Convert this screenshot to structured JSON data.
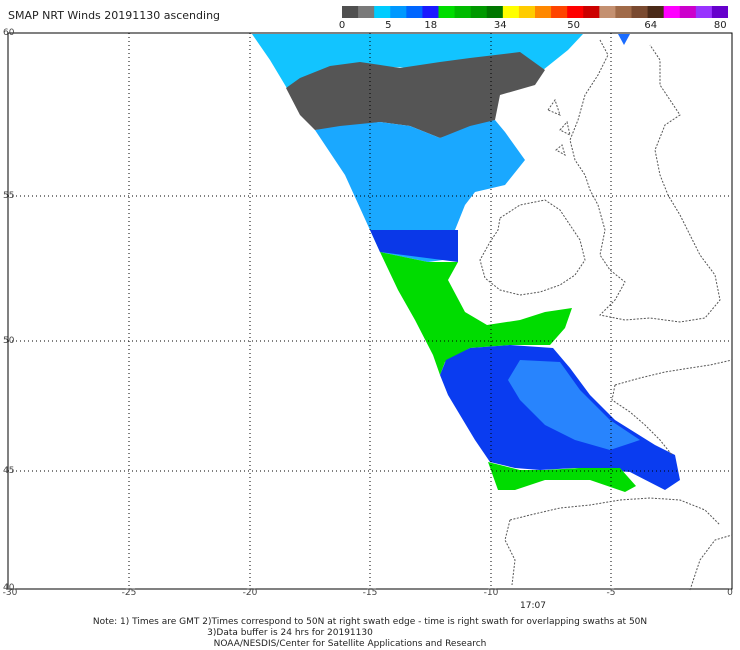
{
  "title": "SMAP NRT Winds 20191130 ascending",
  "colorbar": {
    "segments": [
      {
        "color": "#505050"
      },
      {
        "color": "#7a7a7a"
      },
      {
        "color": "#00ccff"
      },
      {
        "color": "#0099ff"
      },
      {
        "color": "#0066ff"
      },
      {
        "color": "#1a1aff"
      },
      {
        "color": "#00dd00"
      },
      {
        "color": "#00bb00"
      },
      {
        "color": "#009900"
      },
      {
        "color": "#007700"
      },
      {
        "color": "#ffff00"
      },
      {
        "color": "#ffcc00"
      },
      {
        "color": "#ff8800"
      },
      {
        "color": "#ff4400"
      },
      {
        "color": "#ff0000"
      },
      {
        "color": "#cc0000"
      },
      {
        "color": "#c49070"
      },
      {
        "color": "#a06a48"
      },
      {
        "color": "#7a4a30"
      },
      {
        "color": "#4a2a18"
      },
      {
        "color": "#ff00ff"
      },
      {
        "color": "#cc00cc"
      },
      {
        "color": "#9933ff"
      },
      {
        "color": "#6600cc"
      }
    ],
    "ticks": [
      {
        "value": "0",
        "pos": 0
      },
      {
        "value": "5",
        "pos": 0.12
      },
      {
        "value": "18",
        "pos": 0.23
      },
      {
        "value": "34",
        "pos": 0.41
      },
      {
        "value": "50",
        "pos": 0.6
      },
      {
        "value": "64",
        "pos": 0.8
      },
      {
        "value": "80",
        "pos": 0.98
      }
    ]
  },
  "axes": {
    "lat_labels": [
      "60",
      "55",
      "50",
      "45",
      "40"
    ],
    "lon_labels": [
      "-30",
      "-25",
      "-20",
      "-15",
      "-10",
      "-5",
      "0"
    ]
  },
  "swath_time": "17:07",
  "notes": {
    "line1": "Note: 1) Times are GMT 2)Times correspond to 50N at right swath edge - time is right swath for overlapping swaths at 50N",
    "line2": "3)Data buffer is 24 hrs for 20191130",
    "line3": "NOAA/NESDIS/Center for Satellite Applications and Research"
  },
  "wind_colors": {
    "light_blue": "#0ad2ff",
    "sky_blue": "#19aaff",
    "blue": "#0a3cf0",
    "gray": "#555555",
    "green": "#00d800"
  }
}
